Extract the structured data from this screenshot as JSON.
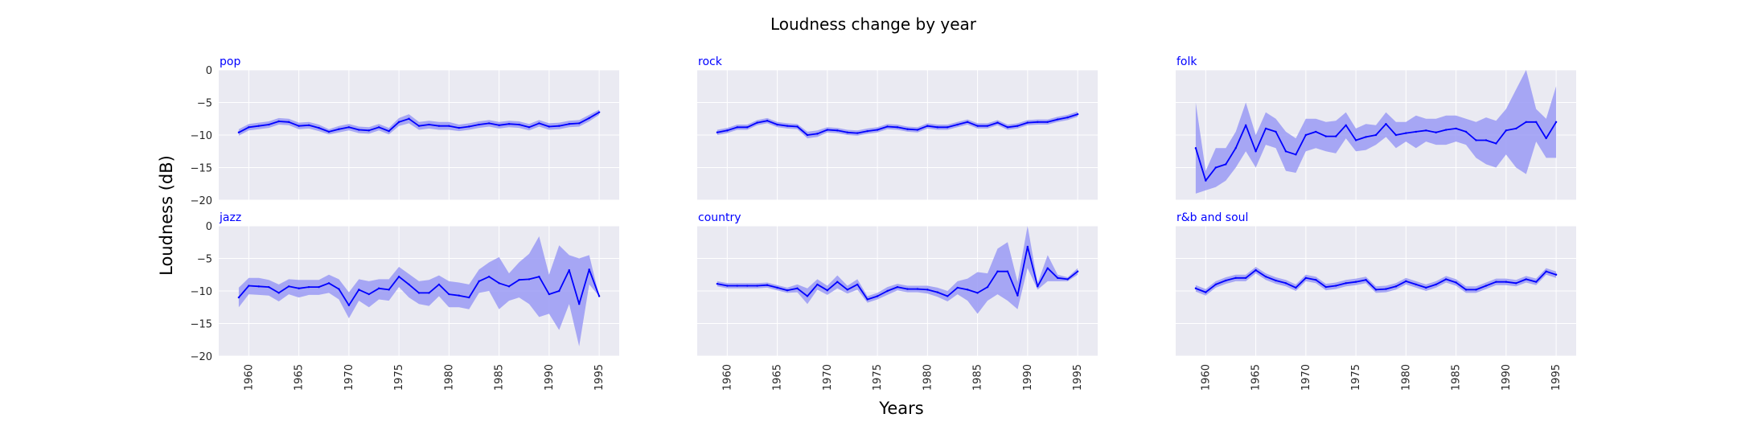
{
  "figure": {
    "title": "Loudness change by year",
    "xlabel": "Years",
    "ylabel": "Loudness (dB)",
    "colors": {
      "line": "#0000ff",
      "band": "#9a9af5",
      "panel_bg": "#eaeaf2",
      "grid": "#ffffff",
      "subtitle": "#0000ff"
    }
  },
  "chart_data": [
    {
      "type": "line",
      "title": "pop",
      "ylim": [
        -20,
        0
      ],
      "xlim": [
        1957,
        1997
      ],
      "grid": true,
      "x": [
        1959,
        1960,
        1961,
        1962,
        1963,
        1964,
        1965,
        1966,
        1967,
        1968,
        1969,
        1970,
        1971,
        1972,
        1973,
        1974,
        1975,
        1976,
        1977,
        1978,
        1979,
        1980,
        1981,
        1982,
        1983,
        1984,
        1985,
        1986,
        1987,
        1988,
        1989,
        1990,
        1991,
        1992,
        1993,
        1994,
        1995
      ],
      "y": [
        -9.6,
        -8.8,
        -8.6,
        -8.4,
        -7.9,
        -8.0,
        -8.6,
        -8.5,
        -8.9,
        -9.5,
        -9.1,
        -8.8,
        -9.2,
        -9.3,
        -8.8,
        -9.4,
        -8.0,
        -7.5,
        -8.6,
        -8.4,
        -8.6,
        -8.6,
        -8.9,
        -8.7,
        -8.4,
        -8.2,
        -8.5,
        -8.3,
        -8.4,
        -8.8,
        -8.2,
        -8.7,
        -8.6,
        -8.3,
        -8.2,
        -7.4,
        -6.5
      ],
      "lower": [
        -10.1,
        -9.3,
        -9.1,
        -8.9,
        -8.4,
        -8.5,
        -9.1,
        -9.0,
        -9.4,
        -9.9,
        -9.6,
        -9.3,
        -9.7,
        -9.8,
        -9.3,
        -9.9,
        -8.6,
        -8.2,
        -9.2,
        -9.0,
        -9.2,
        -9.2,
        -9.4,
        -9.2,
        -8.9,
        -8.7,
        -9.0,
        -8.8,
        -8.9,
        -9.3,
        -8.7,
        -9.2,
        -9.1,
        -8.8,
        -8.7,
        -7.9,
        -6.9
      ],
      "upper": [
        -9.1,
        -8.3,
        -8.1,
        -7.9,
        -7.4,
        -7.5,
        -8.1,
        -8.0,
        -8.4,
        -9.1,
        -8.6,
        -8.3,
        -8.7,
        -8.8,
        -8.3,
        -8.9,
        -7.4,
        -6.8,
        -8.0,
        -7.8,
        -8.0,
        -8.0,
        -8.4,
        -8.2,
        -7.9,
        -7.7,
        -8.0,
        -7.8,
        -7.9,
        -8.3,
        -7.7,
        -8.2,
        -8.1,
        -7.8,
        -7.7,
        -6.9,
        -6.1
      ]
    },
    {
      "type": "line",
      "title": "rock",
      "ylim": [
        -20,
        0
      ],
      "xlim": [
        1957,
        1997
      ],
      "grid": true,
      "x": [
        1959,
        1960,
        1961,
        1962,
        1963,
        1964,
        1965,
        1966,
        1967,
        1968,
        1969,
        1970,
        1971,
        1972,
        1973,
        1974,
        1975,
        1976,
        1977,
        1978,
        1979,
        1980,
        1981,
        1982,
        1983,
        1984,
        1985,
        1986,
        1987,
        1988,
        1989,
        1990,
        1991,
        1992,
        1993,
        1994,
        1995
      ],
      "y": [
        -9.6,
        -9.3,
        -8.8,
        -8.8,
        -8.1,
        -7.8,
        -8.4,
        -8.6,
        -8.7,
        -10.0,
        -9.8,
        -9.2,
        -9.3,
        -9.6,
        -9.7,
        -9.4,
        -9.2,
        -8.7,
        -8.8,
        -9.1,
        -9.2,
        -8.6,
        -8.8,
        -8.8,
        -8.4,
        -8.0,
        -8.6,
        -8.6,
        -8.1,
        -8.8,
        -8.6,
        -8.1,
        -8.0,
        -8.0,
        -7.6,
        -7.3,
        -6.8
      ],
      "lower": [
        -10.0,
        -9.7,
        -9.2,
        -9.2,
        -8.5,
        -8.2,
        -8.8,
        -9.0,
        -9.1,
        -10.5,
        -10.3,
        -9.6,
        -9.7,
        -10.0,
        -10.1,
        -9.8,
        -9.6,
        -9.1,
        -9.2,
        -9.5,
        -9.6,
        -9.0,
        -9.2,
        -9.2,
        -8.8,
        -8.4,
        -9.0,
        -9.0,
        -8.5,
        -9.2,
        -9.0,
        -8.5,
        -8.4,
        -8.4,
        -8.0,
        -7.7,
        -7.2
      ],
      "upper": [
        -9.2,
        -8.9,
        -8.4,
        -8.4,
        -7.7,
        -7.4,
        -8.0,
        -8.2,
        -8.3,
        -9.5,
        -9.3,
        -8.8,
        -8.9,
        -9.2,
        -9.3,
        -9.0,
        -8.8,
        -8.3,
        -8.4,
        -8.7,
        -8.8,
        -8.2,
        -8.4,
        -8.4,
        -8.0,
        -7.6,
        -8.2,
        -8.2,
        -7.7,
        -8.4,
        -8.2,
        -7.7,
        -7.6,
        -7.6,
        -7.2,
        -6.9,
        -6.4
      ]
    },
    {
      "type": "line",
      "title": "folk",
      "ylim": [
        -20,
        0
      ],
      "xlim": [
        1957,
        1997
      ],
      "grid": true,
      "x": [
        1959,
        1960,
        1961,
        1962,
        1963,
        1964,
        1965,
        1966,
        1967,
        1968,
        1969,
        1970,
        1971,
        1972,
        1973,
        1974,
        1975,
        1976,
        1977,
        1978,
        1979,
        1980,
        1981,
        1982,
        1983,
        1984,
        1985,
        1986,
        1987,
        1988,
        1989,
        1990,
        1991,
        1992,
        1993,
        1994,
        1995
      ],
      "y": [
        -12.0,
        -17.0,
        -15.0,
        -14.5,
        -12.0,
        -8.5,
        -12.5,
        -9.0,
        -9.5,
        -12.5,
        -13.0,
        -10.0,
        -9.5,
        -10.2,
        -10.2,
        -8.5,
        -10.8,
        -10.3,
        -10.0,
        -8.3,
        -10.0,
        -9.7,
        -9.5,
        -9.3,
        -9.6,
        -9.2,
        -9.0,
        -9.5,
        -10.8,
        -10.8,
        -11.3,
        -9.3,
        -9.0,
        -8.0,
        -8.0,
        -10.5,
        -8.0
      ],
      "lower": [
        -19.0,
        -18.5,
        -18.0,
        -17.0,
        -15.0,
        -12.5,
        -15.0,
        -11.5,
        -12.0,
        -15.5,
        -15.8,
        -12.5,
        -12.0,
        -12.5,
        -12.8,
        -10.5,
        -12.5,
        -12.3,
        -11.5,
        -10.3,
        -12.0,
        -11.0,
        -12.0,
        -11.0,
        -11.5,
        -11.5,
        -11.0,
        -11.5,
        -13.5,
        -14.5,
        -15.0,
        -13.0,
        -15.0,
        -16.0,
        -11.0,
        -13.5,
        -13.5
      ],
      "upper": [
        -5.0,
        -15.5,
        -12.0,
        -12.0,
        -9.5,
        -5.0,
        -10.0,
        -6.5,
        -7.5,
        -9.5,
        -10.5,
        -7.5,
        -7.5,
        -8.0,
        -7.8,
        -6.5,
        -9.0,
        -8.3,
        -8.5,
        -6.5,
        -8.0,
        -8.0,
        -7.0,
        -7.5,
        -7.5,
        -7.0,
        -7.0,
        -7.5,
        -8.0,
        -7.3,
        -7.8,
        -6.0,
        -3.0,
        0.0,
        -6.0,
        -7.5,
        -2.5
      ]
    },
    {
      "type": "line",
      "title": "jazz",
      "ylim": [
        -20,
        0
      ],
      "xlim": [
        1957,
        1997
      ],
      "grid": true,
      "x": [
        1959,
        1960,
        1961,
        1962,
        1963,
        1964,
        1965,
        1966,
        1967,
        1968,
        1969,
        1970,
        1971,
        1972,
        1973,
        1974,
        1975,
        1976,
        1977,
        1978,
        1979,
        1980,
        1981,
        1982,
        1983,
        1984,
        1985,
        1986,
        1987,
        1988,
        1989,
        1990,
        1991,
        1992,
        1993,
        1994,
        1995
      ],
      "y": [
        -11.0,
        -9.2,
        -9.3,
        -9.4,
        -10.3,
        -9.3,
        -9.6,
        -9.4,
        -9.4,
        -8.8,
        -9.7,
        -12.2,
        -9.8,
        -10.5,
        -9.6,
        -9.8,
        -7.8,
        -9.0,
        -10.3,
        -10.3,
        -9.0,
        -10.5,
        -10.7,
        -11.0,
        -8.5,
        -7.8,
        -8.8,
        -9.3,
        -8.3,
        -8.2,
        -7.8,
        -10.5,
        -10.0,
        -6.8,
        -12.0,
        -6.7,
        -10.8
      ],
      "lower": [
        -12.5,
        -10.5,
        -10.6,
        -10.7,
        -11.6,
        -10.5,
        -11.0,
        -10.6,
        -10.6,
        -10.3,
        -11.3,
        -14.2,
        -11.5,
        -12.5,
        -11.3,
        -11.5,
        -9.4,
        -11.0,
        -12.0,
        -12.3,
        -10.8,
        -12.5,
        -12.5,
        -12.8,
        -10.3,
        -10.0,
        -12.8,
        -11.5,
        -11.0,
        -12.0,
        -14.0,
        -13.5,
        -16.0,
        -12.0,
        -18.5,
        -9.0,
        -10.8
      ],
      "upper": [
        -9.5,
        -8.0,
        -8.0,
        -8.3,
        -9.0,
        -8.2,
        -8.3,
        -8.3,
        -8.3,
        -7.5,
        -8.2,
        -10.2,
        -8.2,
        -8.5,
        -8.2,
        -8.2,
        -6.3,
        -7.4,
        -8.5,
        -8.3,
        -7.6,
        -8.5,
        -8.7,
        -9.0,
        -6.7,
        -5.6,
        -4.8,
        -7.3,
        -5.6,
        -4.3,
        -1.6,
        -7.5,
        -3.0,
        -4.5,
        -5.0,
        -4.5,
        -10.8
      ]
    },
    {
      "type": "line",
      "title": "country",
      "ylim": [
        -20,
        0
      ],
      "xlim": [
        1957,
        1997
      ],
      "grid": true,
      "x": [
        1959,
        1960,
        1961,
        1962,
        1963,
        1964,
        1965,
        1966,
        1967,
        1968,
        1969,
        1970,
        1971,
        1972,
        1973,
        1974,
        1975,
        1976,
        1977,
        1978,
        1979,
        1980,
        1981,
        1982,
        1983,
        1984,
        1985,
        1986,
        1987,
        1988,
        1989,
        1990,
        1991,
        1992,
        1993,
        1994,
        1995
      ],
      "y": [
        -8.9,
        -9.2,
        -9.2,
        -9.2,
        -9.2,
        -9.1,
        -9.5,
        -9.9,
        -9.6,
        -10.8,
        -9.0,
        -9.9,
        -8.6,
        -9.8,
        -9.0,
        -11.3,
        -10.8,
        -10.0,
        -9.4,
        -9.7,
        -9.7,
        -9.8,
        -10.2,
        -10.8,
        -9.5,
        -9.8,
        -10.3,
        -9.4,
        -7.0,
        -7.0,
        -10.7,
        -3.2,
        -9.3,
        -6.5,
        -8.0,
        -8.2,
        -7.0
      ],
      "lower": [
        -9.3,
        -9.6,
        -9.6,
        -9.6,
        -9.6,
        -9.5,
        -9.9,
        -10.3,
        -10.2,
        -12.0,
        -9.8,
        -10.6,
        -9.6,
        -10.4,
        -9.8,
        -11.8,
        -11.3,
        -10.6,
        -9.9,
        -10.2,
        -10.2,
        -10.4,
        -10.9,
        -11.6,
        -10.5,
        -11.5,
        -13.5,
        -11.5,
        -10.5,
        -11.5,
        -12.8,
        -6.5,
        -9.8,
        -8.5,
        -8.5,
        -8.5,
        -7.5
      ],
      "upper": [
        -8.5,
        -8.8,
        -8.8,
        -8.8,
        -8.8,
        -8.7,
        -9.1,
        -9.5,
        -9.0,
        -9.6,
        -8.2,
        -9.2,
        -7.6,
        -9.2,
        -8.2,
        -10.8,
        -10.3,
        -9.4,
        -8.9,
        -9.2,
        -9.2,
        -9.2,
        -9.5,
        -10.0,
        -8.5,
        -8.1,
        -7.1,
        -7.3,
        -3.5,
        -2.5,
        -8.6,
        0.0,
        -8.8,
        -4.5,
        -7.5,
        -7.9,
        -6.5
      ]
    },
    {
      "type": "line",
      "title": "r&b and soul",
      "ylim": [
        -20,
        0
      ],
      "xlim": [
        1957,
        1997
      ],
      "grid": true,
      "x": [
        1959,
        1960,
        1961,
        1962,
        1963,
        1964,
        1965,
        1966,
        1967,
        1968,
        1969,
        1970,
        1971,
        1972,
        1973,
        1974,
        1975,
        1976,
        1977,
        1978,
        1979,
        1980,
        1981,
        1982,
        1983,
        1984,
        1985,
        1986,
        1987,
        1988,
        1989,
        1990,
        1991,
        1992,
        1993,
        1994,
        1995
      ],
      "y": [
        -9.6,
        -10.2,
        -9.0,
        -8.4,
        -8.0,
        -8.0,
        -6.8,
        -7.8,
        -8.4,
        -8.8,
        -9.5,
        -8.0,
        -8.3,
        -9.4,
        -9.2,
        -8.8,
        -8.6,
        -8.3,
        -9.8,
        -9.7,
        -9.3,
        -8.5,
        -9.0,
        -9.5,
        -9.0,
        -8.2,
        -8.7,
        -9.8,
        -9.8,
        -9.2,
        -8.6,
        -8.6,
        -8.8,
        -8.2,
        -8.6,
        -7.0,
        -7.5
      ],
      "lower": [
        -10.1,
        -10.7,
        -9.5,
        -8.9,
        -8.5,
        -8.5,
        -7.3,
        -8.3,
        -8.9,
        -9.3,
        -10.0,
        -8.5,
        -8.8,
        -9.9,
        -9.7,
        -9.3,
        -9.1,
        -8.8,
        -10.3,
        -10.2,
        -9.8,
        -9.0,
        -9.5,
        -10.0,
        -9.5,
        -8.7,
        -9.2,
        -10.3,
        -10.3,
        -9.7,
        -9.1,
        -9.1,
        -9.3,
        -8.7,
        -9.1,
        -7.5,
        -8.0
      ],
      "upper": [
        -9.1,
        -9.7,
        -8.5,
        -7.9,
        -7.5,
        -7.5,
        -6.3,
        -7.3,
        -7.9,
        -8.3,
        -9.0,
        -7.5,
        -7.8,
        -8.9,
        -8.7,
        -8.3,
        -8.1,
        -7.8,
        -9.3,
        -9.2,
        -8.8,
        -8.0,
        -8.5,
        -9.0,
        -8.5,
        -7.7,
        -8.2,
        -9.3,
        -9.3,
        -8.7,
        -8.1,
        -8.1,
        -8.3,
        -7.7,
        -8.1,
        -6.5,
        -7.0
      ]
    }
  ]
}
